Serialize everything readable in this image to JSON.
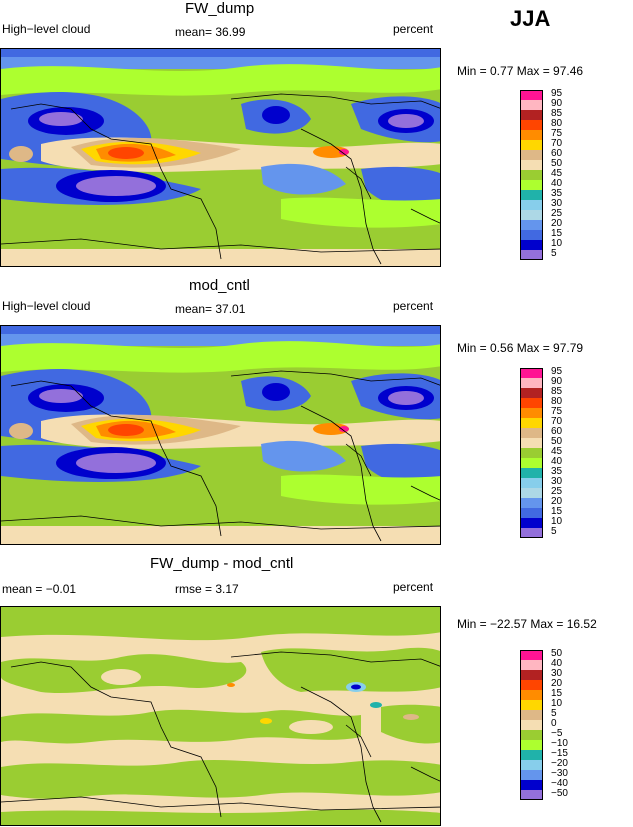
{
  "season": "JJA",
  "panels": [
    {
      "title": "FW_dump",
      "variable": "High−level cloud",
      "stat1": "mean=  36.99",
      "stat2": "",
      "unit": "percent",
      "minmax": "Min =    0.77  Max =   97.46",
      "legend_labels": [
        "95",
        "90",
        "85",
        "80",
        "75",
        "70",
        "60",
        "50",
        "45",
        "40",
        "35",
        "30",
        "25",
        "20",
        "15",
        "10",
        "5"
      ]
    },
    {
      "title": "mod_cntl",
      "variable": "High−level cloud",
      "stat1": "mean=  37.01",
      "stat2": "",
      "unit": "percent",
      "minmax": "Min =    0.56  Max =   97.79",
      "legend_labels": [
        "95",
        "90",
        "85",
        "80",
        "75",
        "70",
        "60",
        "50",
        "45",
        "40",
        "35",
        "30",
        "25",
        "20",
        "15",
        "10",
        "5"
      ]
    },
    {
      "title": "FW_dump - mod_cntl",
      "variable": "mean =   −0.01",
      "stat1": "",
      "stat2": "rmse =    3.17",
      "unit": "percent",
      "minmax": "Min = −22.57  Max =   16.52",
      "legend_labels": [
        "50",
        "40",
        "30",
        "20",
        "15",
        "10",
        "5",
        "0",
        "−5",
        "−10",
        "−15",
        "−20",
        "−30",
        "−40",
        "−50"
      ]
    }
  ],
  "colors": {
    "abs_scale": [
      "#ff1493",
      "#ffb6c1",
      "#b22222",
      "#ff4500",
      "#ff8c00",
      "#ffd700",
      "#deb887",
      "#f5deb3",
      "#9acd32",
      "#adff2f",
      "#20b2aa",
      "#87ceeb",
      "#add8e6",
      "#6495ed",
      "#4169e1",
      "#0000cd",
      "#9370db"
    ],
    "diff_scale": [
      "#ff1493",
      "#ffb6c1",
      "#b22222",
      "#ff4500",
      "#ff8c00",
      "#ffd700",
      "#deb887",
      "#f5deb3",
      "#9acd32",
      "#adff2f",
      "#20b2aa",
      "#87ceeb",
      "#6495ed",
      "#0000cd",
      "#9370db"
    ]
  },
  "chart_data": [
    {
      "type": "heatmap",
      "title": "FW_dump",
      "variable": "High-level cloud",
      "units": "percent",
      "mean": 36.99,
      "min": 0.77,
      "max": 97.46,
      "levels": [
        5,
        10,
        15,
        20,
        25,
        30,
        35,
        40,
        45,
        50,
        60,
        70,
        75,
        80,
        85,
        90,
        95
      ]
    },
    {
      "type": "heatmap",
      "title": "mod_cntl",
      "variable": "High-level cloud",
      "units": "percent",
      "mean": 37.01,
      "min": 0.56,
      "max": 97.79,
      "levels": [
        5,
        10,
        15,
        20,
        25,
        30,
        35,
        40,
        45,
        50,
        60,
        70,
        75,
        80,
        85,
        90,
        95
      ]
    },
    {
      "type": "heatmap",
      "title": "FW_dump - mod_cntl",
      "units": "percent",
      "mean": -0.01,
      "rmse": 3.17,
      "min": -22.57,
      "max": 16.52,
      "levels": [
        -50,
        -40,
        -30,
        -20,
        -15,
        -10,
        -5,
        0,
        5,
        10,
        15,
        20,
        30,
        40,
        50
      ]
    }
  ]
}
